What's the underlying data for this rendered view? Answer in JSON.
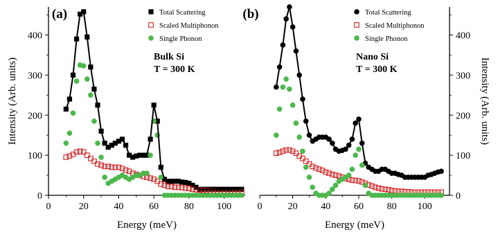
{
  "chart_data": [
    {
      "type": "scatter",
      "panel_label": "(a)",
      "annotation": [
        "Bulk Si",
        "T = 300 K"
      ],
      "xlabel": "Energy (meV)",
      "ylabel": "Intensity (Arb. units)",
      "y_axis_side": "left",
      "xlim": [
        0,
        112
      ],
      "ylim": [
        0,
        470
      ],
      "x_ticks": [
        0,
        20,
        40,
        60,
        80,
        100
      ],
      "y_ticks": [
        0,
        100,
        200,
        300,
        400
      ],
      "legend_position": "top-right",
      "series": [
        {
          "name": "Total Scattering",
          "marker": "filled-square",
          "color": "#000000",
          "x": [
            10,
            12,
            14,
            16,
            18,
            20,
            22,
            24,
            26,
            28,
            30,
            32,
            34,
            36,
            38,
            40,
            42,
            44,
            46,
            48,
            50,
            52,
            54,
            56,
            58,
            60,
            62,
            64,
            66,
            68,
            70,
            72,
            74,
            76,
            78,
            80,
            82,
            84,
            86,
            88,
            90,
            92,
            94,
            96,
            98,
            100,
            102,
            104,
            106,
            108,
            110
          ],
          "y": [
            215,
            240,
            300,
            390,
            452,
            458,
            395,
            320,
            265,
            225,
            160,
            130,
            120,
            125,
            130,
            135,
            140,
            125,
            100,
            95,
            98,
            100,
            100,
            100,
            140,
            225,
            185,
            70,
            40,
            35,
            35,
            35,
            35,
            33,
            32,
            30,
            25,
            20,
            15,
            15,
            15,
            15,
            15,
            15,
            15,
            15,
            15,
            15,
            15,
            15,
            15
          ]
        },
        {
          "name": "Scaled Multiphonon",
          "marker": "open-square",
          "color": "#d42020",
          "x": [
            10,
            12,
            14,
            16,
            18,
            20,
            22,
            24,
            26,
            28,
            30,
            32,
            34,
            36,
            38,
            40,
            42,
            44,
            46,
            48,
            50,
            52,
            54,
            56,
            58,
            60,
            62,
            64,
            66,
            68,
            70,
            72,
            74,
            76,
            78,
            80,
            82,
            84,
            86,
            88,
            90,
            92,
            94,
            96,
            98,
            100,
            102,
            104,
            106,
            108,
            110
          ],
          "y": [
            95,
            98,
            102,
            108,
            110,
            108,
            100,
            92,
            85,
            78,
            75,
            72,
            72,
            70,
            70,
            70,
            67,
            63,
            60,
            55,
            52,
            50,
            47,
            45,
            43,
            40,
            35,
            28,
            25,
            22,
            22,
            20,
            20,
            19,
            18,
            17,
            15,
            14,
            13,
            12,
            12,
            11,
            11,
            10,
            10,
            10,
            9,
            9,
            9,
            8,
            8
          ]
        },
        {
          "name": "Single Phonon",
          "marker": "filled-circle",
          "color": "#4cb84c",
          "x": [
            10,
            12,
            14,
            16,
            18,
            20,
            22,
            24,
            26,
            28,
            30,
            32,
            34,
            36,
            38,
            40,
            42,
            44,
            46,
            48,
            50,
            52,
            54,
            56,
            58,
            60,
            62,
            64,
            66,
            68,
            70,
            72,
            74,
            76,
            78,
            80,
            82,
            84,
            86,
            88,
            90,
            92,
            94,
            96,
            98,
            100,
            102,
            104,
            106,
            108,
            110
          ],
          "y": [
            130,
            155,
            205,
            285,
            325,
            323,
            290,
            250,
            185,
            130,
            95,
            45,
            30,
            35,
            40,
            45,
            50,
            45,
            40,
            45,
            50,
            50,
            55,
            55,
            100,
            185,
            150,
            45,
            0,
            0,
            0,
            0,
            0,
            0,
            0,
            0,
            0,
            0,
            0,
            0,
            0,
            0,
            0,
            0,
            0,
            0,
            0,
            0,
            0,
            0,
            0
          ]
        }
      ]
    },
    {
      "type": "scatter",
      "panel_label": "(b)",
      "annotation": [
        "Nano Si",
        "T = 300 K"
      ],
      "xlabel": "Energy (meV)",
      "ylabel": "Intensity (Arb. units)",
      "y_axis_side": "right",
      "xlim": [
        0,
        115
      ],
      "ylim": [
        0,
        470
      ],
      "x_ticks": [
        0,
        20,
        40,
        60,
        80,
        100
      ],
      "y_ticks": [
        0,
        100,
        200,
        300,
        400
      ],
      "legend_position": "top-right",
      "series": [
        {
          "name": "Total Scattering",
          "marker": "filled-circle",
          "color": "#000000",
          "x": [
            10,
            12,
            14,
            16,
            18,
            20,
            22,
            24,
            26,
            28,
            30,
            32,
            34,
            36,
            38,
            40,
            42,
            44,
            46,
            48,
            50,
            52,
            54,
            56,
            58,
            60,
            62,
            64,
            66,
            68,
            70,
            72,
            74,
            76,
            78,
            80,
            82,
            84,
            86,
            88,
            90,
            92,
            94,
            96,
            98,
            100,
            102,
            104,
            106,
            108,
            110
          ],
          "y": [
            270,
            320,
            375,
            440,
            470,
            420,
            360,
            300,
            240,
            185,
            150,
            135,
            140,
            145,
            145,
            145,
            140,
            130,
            115,
            110,
            112,
            115,
            125,
            140,
            180,
            190,
            130,
            80,
            70,
            65,
            60,
            60,
            65,
            65,
            60,
            55,
            55,
            52,
            50,
            45,
            45,
            45,
            45,
            45,
            45,
            45,
            50,
            52,
            55,
            58,
            60
          ]
        },
        {
          "name": "Scaled Multiphonon",
          "marker": "open-square",
          "color": "#d42020",
          "x": [
            10,
            12,
            14,
            16,
            18,
            20,
            22,
            24,
            26,
            28,
            30,
            32,
            34,
            36,
            38,
            40,
            42,
            44,
            46,
            48,
            50,
            52,
            54,
            56,
            58,
            60,
            62,
            64,
            66,
            68,
            70,
            72,
            74,
            76,
            78,
            80,
            82,
            84,
            86,
            88,
            90,
            92,
            94,
            96,
            98,
            100,
            102,
            104,
            106,
            108,
            110
          ],
          "y": [
            105,
            107,
            110,
            113,
            113,
            110,
            105,
            98,
            92,
            85,
            78,
            72,
            68,
            65,
            62,
            58,
            55,
            52,
            50,
            48,
            45,
            42,
            40,
            38,
            37,
            36,
            33,
            30,
            26,
            23,
            20,
            18,
            16,
            15,
            14,
            12,
            11,
            10,
            10,
            9,
            9,
            8,
            8,
            8,
            8,
            8,
            8,
            8,
            8,
            8,
            8
          ]
        },
        {
          "name": "Single Phonon",
          "marker": "filled-circle",
          "color": "#4cb84c",
          "x": [
            10,
            12,
            14,
            16,
            18,
            20,
            22,
            24,
            26,
            28,
            30,
            32,
            34,
            36,
            38,
            40,
            42,
            44,
            46,
            48,
            50,
            52,
            54,
            56,
            58,
            60,
            62,
            64,
            66,
            68,
            70,
            72,
            74,
            76,
            78,
            80,
            82,
            84,
            86,
            88,
            90,
            92,
            94,
            96,
            98,
            100,
            102,
            104,
            106,
            108,
            110
          ],
          "y": [
            150,
            215,
            270,
            290,
            265,
            225,
            180,
            145,
            110,
            70,
            45,
            20,
            5,
            0,
            0,
            0,
            5,
            15,
            25,
            35,
            40,
            45,
            50,
            65,
            100,
            115,
            75,
            25,
            5,
            0,
            0,
            0,
            0,
            0,
            0,
            0,
            0,
            0,
            0,
            0,
            0,
            0,
            0,
            0,
            0,
            0,
            0,
            0,
            0,
            0,
            0
          ]
        }
      ]
    }
  ]
}
